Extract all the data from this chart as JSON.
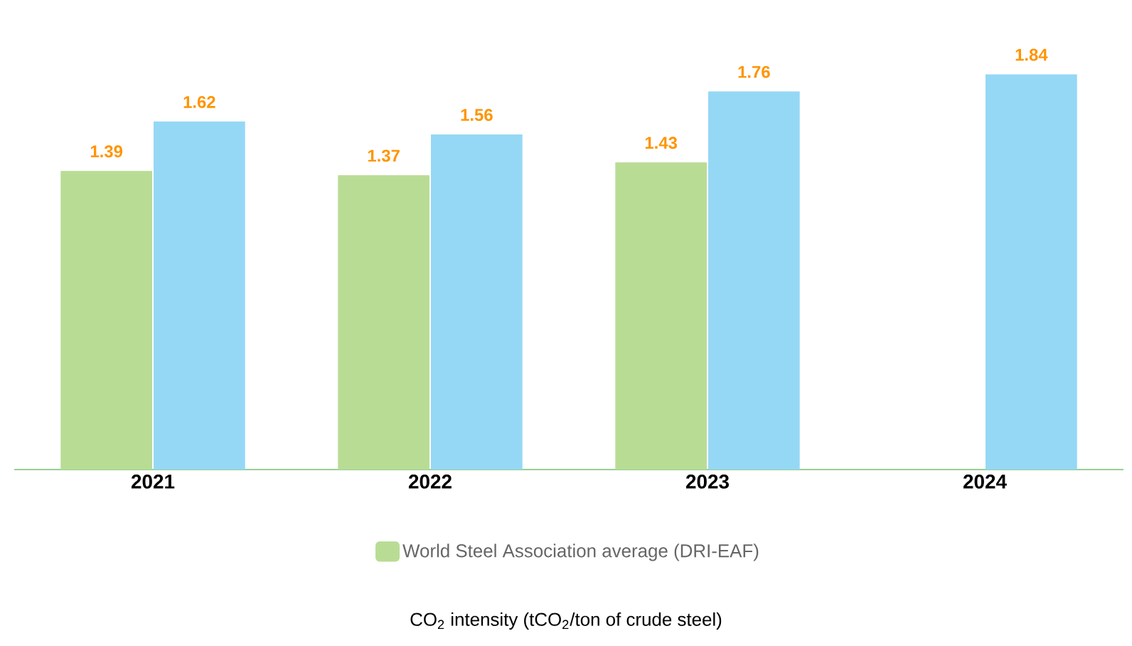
{
  "chart_data": {
    "type": "bar",
    "categories": [
      "2021",
      "2022",
      "2023",
      "2024"
    ],
    "series": [
      {
        "name": "World Steel Association average (DRI-EAF)",
        "color": "#b9dc95",
        "values": [
          1.39,
          1.37,
          1.43,
          null
        ]
      },
      {
        "color": "#95d8f5",
        "values": [
          1.62,
          1.56,
          1.76,
          1.84
        ]
      }
    ],
    "data_labels": true,
    "tick_labels": "x",
    "legend": "bottom",
    "annotations": [
      "CO$_{2}$ intensity (tCO$_{2}$/ton of crude steel)"
    ]
  }
}
